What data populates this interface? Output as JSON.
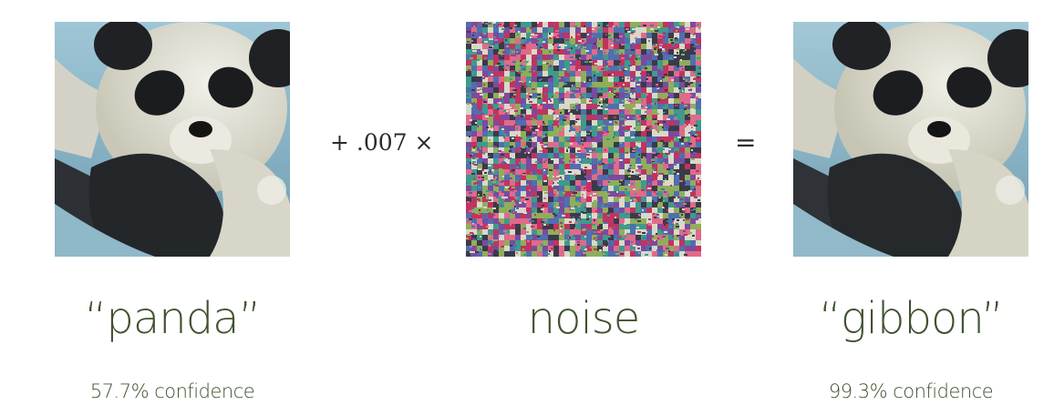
{
  "operators": {
    "plus_scale": "+ .007 ×",
    "equals": "="
  },
  "panels": [
    {
      "label": "“panda”",
      "confidence": "57.7% confidence",
      "image": "panda-photo"
    },
    {
      "label": "noise",
      "confidence": "",
      "image": "noise-pattern"
    },
    {
      "label": "“gibbon”",
      "confidence": "99.3% confidence",
      "image": "panda-photo-perturbed"
    }
  ],
  "colors": {
    "label_text": "#3f5230",
    "operator_text": "#2b2b2b",
    "noise_palette": [
      "#c2335f",
      "#3f9a8c",
      "#7b4aa0",
      "#d9d9c8",
      "#4f6fb0",
      "#8fae5a",
      "#e06a8a",
      "#3a3a4a"
    ]
  }
}
